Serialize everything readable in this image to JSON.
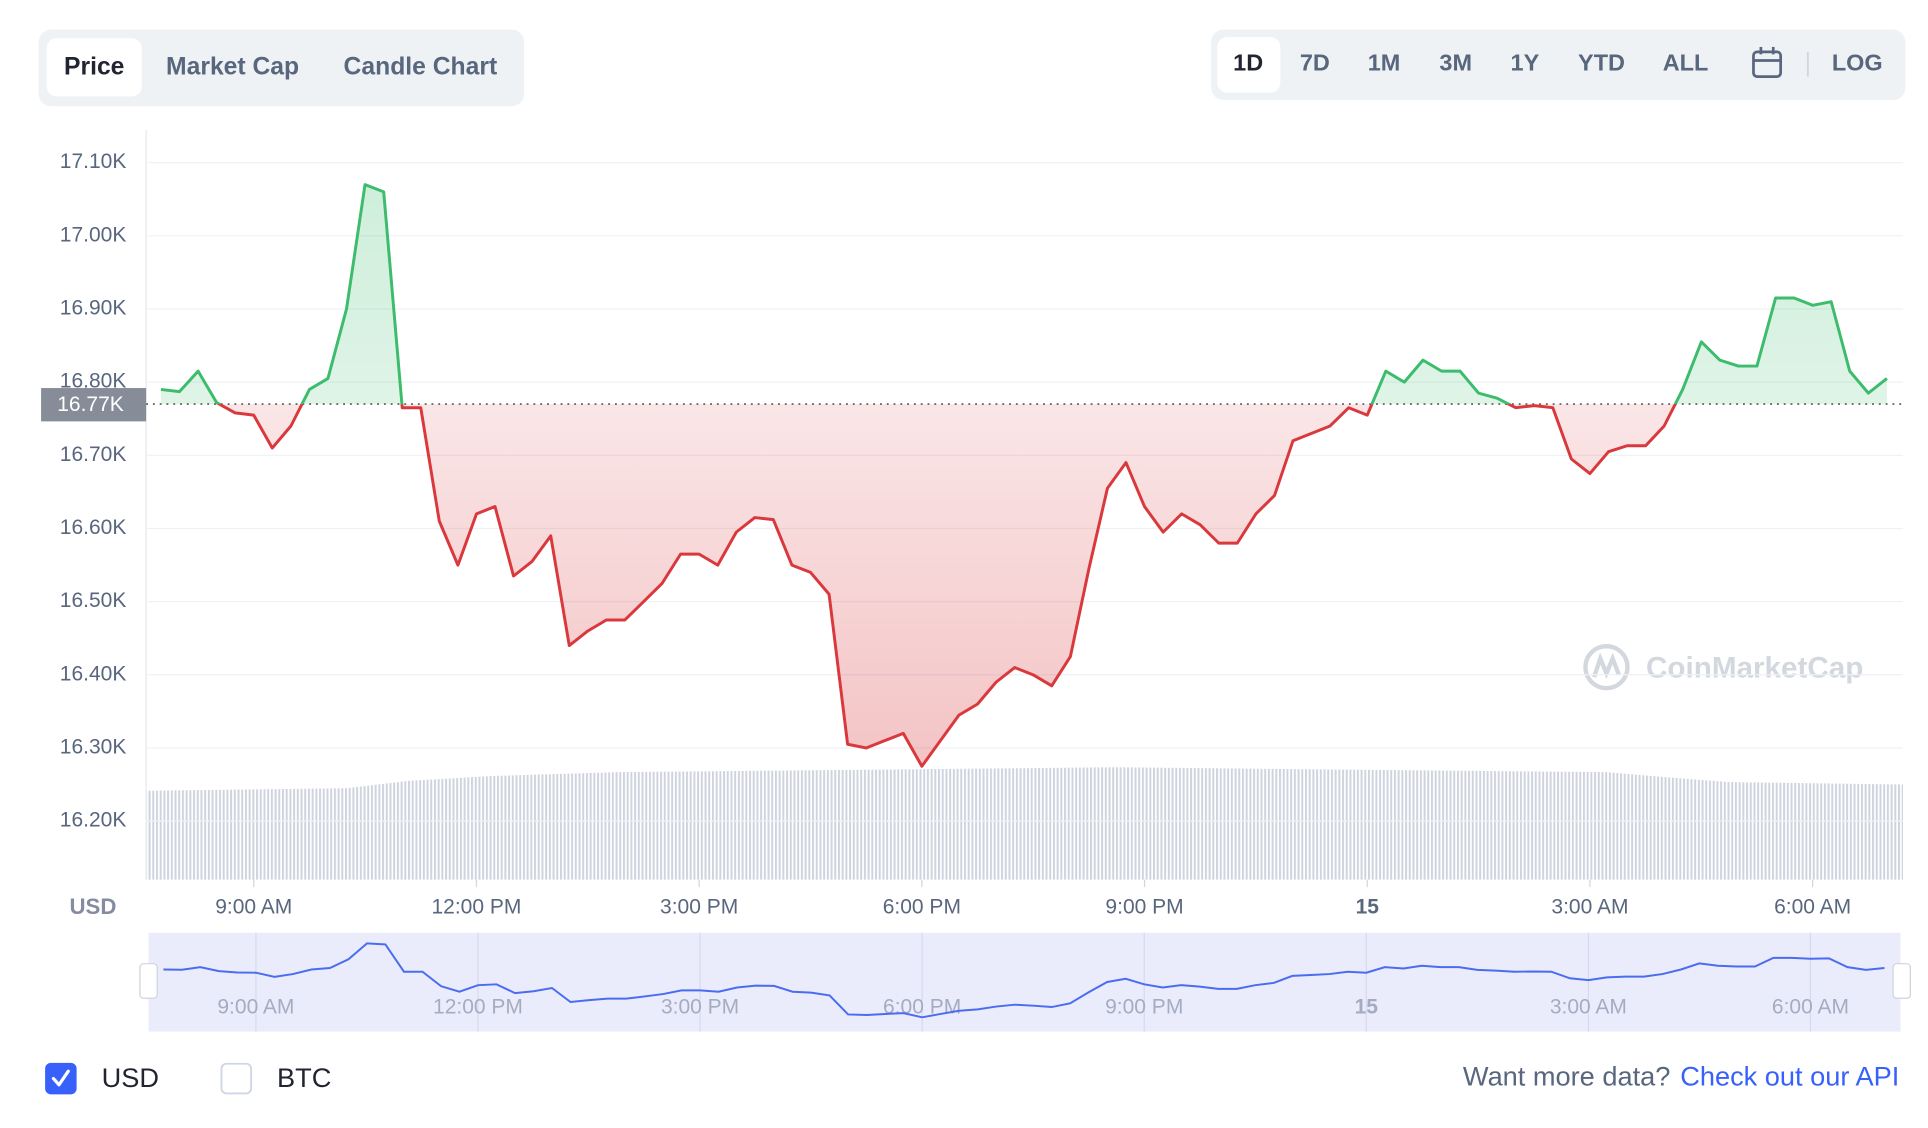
{
  "tabs": [
    {
      "label": "Price",
      "selected": true
    },
    {
      "label": "Market Cap",
      "selected": false
    },
    {
      "label": "Candle Chart",
      "selected": false
    }
  ],
  "ranges": [
    {
      "label": "1D",
      "selected": true
    },
    {
      "label": "7D",
      "selected": false
    },
    {
      "label": "1M",
      "selected": false
    },
    {
      "label": "3M",
      "selected": false
    },
    {
      "label": "1Y",
      "selected": false
    },
    {
      "label": "YTD",
      "selected": false
    },
    {
      "label": "ALL",
      "selected": false
    }
  ],
  "log_button": "LOG",
  "watermark": "CoinMarketCap",
  "chart_data": {
    "type": "line",
    "y_axis_label": "USD",
    "up_color": "#3cbc6c",
    "down_color": "#d9383c",
    "navigator_color": "#4a6cf0",
    "grid": true,
    "baseline": {
      "value": 16770,
      "label": "16.77K"
    },
    "xlim": [
      "7:33 AM",
      "7:13 AM"
    ],
    "xticks": [
      "9:00 AM",
      "12:00 PM",
      "3:00 PM",
      "6:00 PM",
      "9:00 PM",
      {
        "value": "12:00 AM",
        "label": "15"
      },
      "3:00 AM",
      "6:00 AM"
    ],
    "ylim": [
      16120,
      17145
    ],
    "yticks": [
      {
        "value": 16200,
        "label": "16.20K"
      },
      {
        "value": 16300,
        "label": "16.30K"
      },
      {
        "value": 16400,
        "label": "16.40K"
      },
      {
        "value": 16500,
        "label": "16.50K"
      },
      {
        "value": 16600,
        "label": "16.60K"
      },
      {
        "value": 16700,
        "label": "16.70K"
      },
      {
        "value": 16800,
        "label": "16.80K"
      },
      {
        "value": 16900,
        "label": "16.90K"
      },
      {
        "value": 17000,
        "label": "17.00K"
      },
      {
        "value": 17100,
        "label": "17.10K"
      }
    ],
    "x": [
      "7:45 AM",
      "8:00 AM",
      "8:15 AM",
      "8:30 AM",
      "8:45 AM",
      "9:00 AM",
      "9:15 AM",
      "9:30 AM",
      "9:45 AM",
      "10:00 AM",
      "10:15 AM",
      "10:30 AM",
      "10:45 AM",
      "11:00 AM",
      "11:15 AM",
      "11:30 AM",
      "11:45 AM",
      "12:00 PM",
      "12:15 PM",
      "12:30 PM",
      "12:45 PM",
      "1:00 PM",
      "1:15 PM",
      "1:30 PM",
      "1:45 PM",
      "2:00 PM",
      "2:15 PM",
      "2:30 PM",
      "2:45 PM",
      "3:00 PM",
      "3:15 PM",
      "3:30 PM",
      "3:45 PM",
      "4:00 PM",
      "4:15 PM",
      "4:30 PM",
      "4:45 PM",
      "5:00 PM",
      "5:15 PM",
      "5:30 PM",
      "5:45 PM",
      "6:00 PM",
      "6:15 PM",
      "6:30 PM",
      "6:45 PM",
      "7:00 PM",
      "7:15 PM",
      "7:30 PM",
      "7:45 PM",
      "8:00 PM",
      "8:15 PM",
      "8:30 PM",
      "8:45 PM",
      "9:00 PM",
      "9:15 PM",
      "9:30 PM",
      "9:45 PM",
      "10:00 PM",
      "10:15 PM",
      "10:30 PM",
      "10:45 PM",
      "11:00 PM",
      "11:15 PM",
      "11:30 PM",
      "11:45 PM",
      "12:00 AM",
      "12:15 AM",
      "12:30 AM",
      "12:45 AM",
      "1:00 AM",
      "1:15 AM",
      "1:30 AM",
      "1:45 AM",
      "2:00 AM",
      "2:15 AM",
      "2:30 AM",
      "2:45 AM",
      "3:00 AM",
      "3:15 AM",
      "3:30 AM",
      "3:45 AM",
      "4:00 AM",
      "4:15 AM",
      "4:30 AM",
      "4:45 AM",
      "5:00 AM",
      "5:15 AM",
      "5:30 AM",
      "5:45 AM",
      "6:00 AM",
      "6:15 AM",
      "6:30 AM",
      "6:45 AM",
      "7:00 AM"
    ],
    "values": [
      16790,
      16787,
      16815,
      16772,
      16758,
      16755,
      16710,
      16740,
      16790,
      16805,
      16900,
      17070,
      17060,
      16765,
      16765,
      16610,
      16550,
      16620,
      16630,
      16535,
      16555,
      16590,
      16440,
      16460,
      16475,
      16475,
      16500,
      16525,
      16565,
      16565,
      16550,
      16595,
      16615,
      16612,
      16550,
      16540,
      16510,
      16305,
      16300,
      16310,
      16320,
      16275,
      16310,
      16345,
      16360,
      16390,
      16410,
      16400,
      16385,
      16425,
      16545,
      16655,
      16690,
      16630,
      16595,
      16620,
      16605,
      16580,
      16580,
      16620,
      16645,
      16720,
      16730,
      16740,
      16765,
      16755,
      16815,
      16800,
      16830,
      16815,
      16815,
      16785,
      16778,
      16765,
      16768,
      16765,
      16695,
      16675,
      16705,
      16713,
      16713,
      16740,
      16790,
      16855,
      16830,
      16822,
      16822,
      16915,
      16915,
      16905,
      16910,
      16815,
      16785,
      16805
    ]
  },
  "currencies": [
    {
      "label": "USD",
      "checked": true
    },
    {
      "label": "BTC",
      "checked": false
    }
  ],
  "footer": {
    "text": "Want more data?",
    "link": "Check out our API"
  }
}
